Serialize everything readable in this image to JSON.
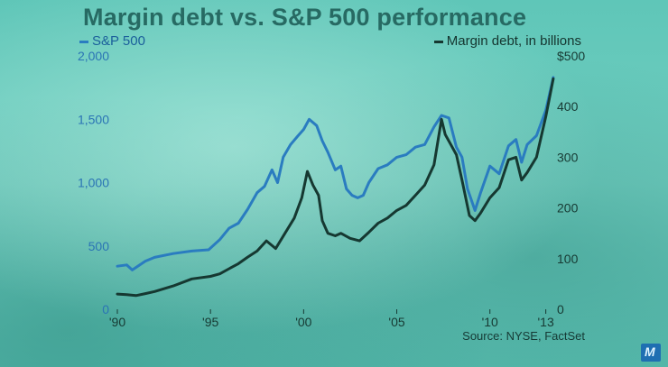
{
  "chart_data": {
    "type": "line",
    "title": "Margin debt vs. S&P 500 performance",
    "source": "Source: NYSE, FactSet",
    "x_ticks": [
      "'90",
      "'95",
      "'00",
      "'05",
      "'10",
      "'13"
    ],
    "x_tick_values": [
      1990,
      1995,
      2000,
      2005,
      2010,
      2013
    ],
    "x_range": [
      1990,
      2013.6
    ],
    "left_axis": {
      "ticks": [
        "2,000",
        "1,500",
        "1,000",
        "500",
        "0"
      ],
      "tick_values": [
        2000,
        1500,
        1000,
        500,
        0
      ],
      "range": [
        0,
        2000
      ]
    },
    "right_axis": {
      "ticks": [
        "$500",
        "400",
        "300",
        "200",
        "100",
        "0"
      ],
      "tick_values": [
        500,
        400,
        300,
        200,
        100,
        0
      ],
      "range": [
        0,
        500
      ]
    },
    "series": [
      {
        "name": "S&P 500",
        "axis": "left",
        "color": "#2a7cc0",
        "x": [
          1990.0,
          1990.5,
          1990.8,
          1991.0,
          1991.5,
          1992.0,
          1993.0,
          1994.0,
          1994.9,
          1995.5,
          1996.0,
          1996.5,
          1997.0,
          1997.5,
          1997.9,
          1998.3,
          1998.6,
          1998.9,
          1999.3,
          1999.7,
          2000.0,
          2000.3,
          2000.7,
          2001.0,
          2001.3,
          2001.7,
          2002.0,
          2002.3,
          2002.6,
          2002.9,
          2003.2,
          2003.5,
          2004.0,
          2004.5,
          2005.0,
          2005.5,
          2006.0,
          2006.5,
          2007.0,
          2007.4,
          2007.8,
          2008.2,
          2008.5,
          2008.8,
          2009.2,
          2009.5,
          2010.0,
          2010.5,
          2011.0,
          2011.4,
          2011.7,
          2012.0,
          2012.5,
          2013.0,
          2013.4
        ],
        "y": [
          340,
          350,
          310,
          330,
          380,
          410,
          440,
          460,
          470,
          550,
          640,
          680,
          790,
          920,
          970,
          1100,
          1000,
          1200,
          1300,
          1370,
          1420,
          1500,
          1450,
          1330,
          1240,
          1100,
          1130,
          950,
          900,
          880,
          900,
          1000,
          1110,
          1140,
          1200,
          1220,
          1280,
          1300,
          1440,
          1530,
          1510,
          1280,
          1200,
          950,
          780,
          920,
          1130,
          1070,
          1290,
          1340,
          1160,
          1300,
          1370,
          1570,
          1830
        ]
      },
      {
        "name": "Margin debt, in billions",
        "axis": "right",
        "color": "#163831",
        "x": [
          1990.0,
          1990.5,
          1991.0,
          1991.5,
          1992.0,
          1993.0,
          1994.0,
          1995.0,
          1995.5,
          1996.0,
          1996.5,
          1997.0,
          1997.5,
          1998.0,
          1998.5,
          1999.0,
          1999.5,
          1999.9,
          2000.2,
          2000.5,
          2000.8,
          2001.0,
          2001.3,
          2001.7,
          2002.0,
          2002.5,
          2003.0,
          2003.5,
          2004.0,
          2004.5,
          2005.0,
          2005.5,
          2006.0,
          2006.5,
          2007.0,
          2007.4,
          2007.6,
          2007.9,
          2008.2,
          2008.5,
          2008.9,
          2009.2,
          2009.5,
          2010.0,
          2010.5,
          2011.0,
          2011.4,
          2011.7,
          2012.0,
          2012.5,
          2013.0,
          2013.4
        ],
        "y": [
          30,
          29,
          27,
          31,
          35,
          46,
          60,
          65,
          70,
          80,
          90,
          103,
          115,
          135,
          120,
          150,
          180,
          220,
          272,
          245,
          225,
          175,
          150,
          145,
          150,
          140,
          135,
          152,
          170,
          180,
          195,
          205,
          225,
          245,
          285,
          375,
          345,
          325,
          305,
          255,
          185,
          175,
          190,
          220,
          240,
          295,
          300,
          255,
          270,
          300,
          380,
          455
        ]
      }
    ]
  }
}
